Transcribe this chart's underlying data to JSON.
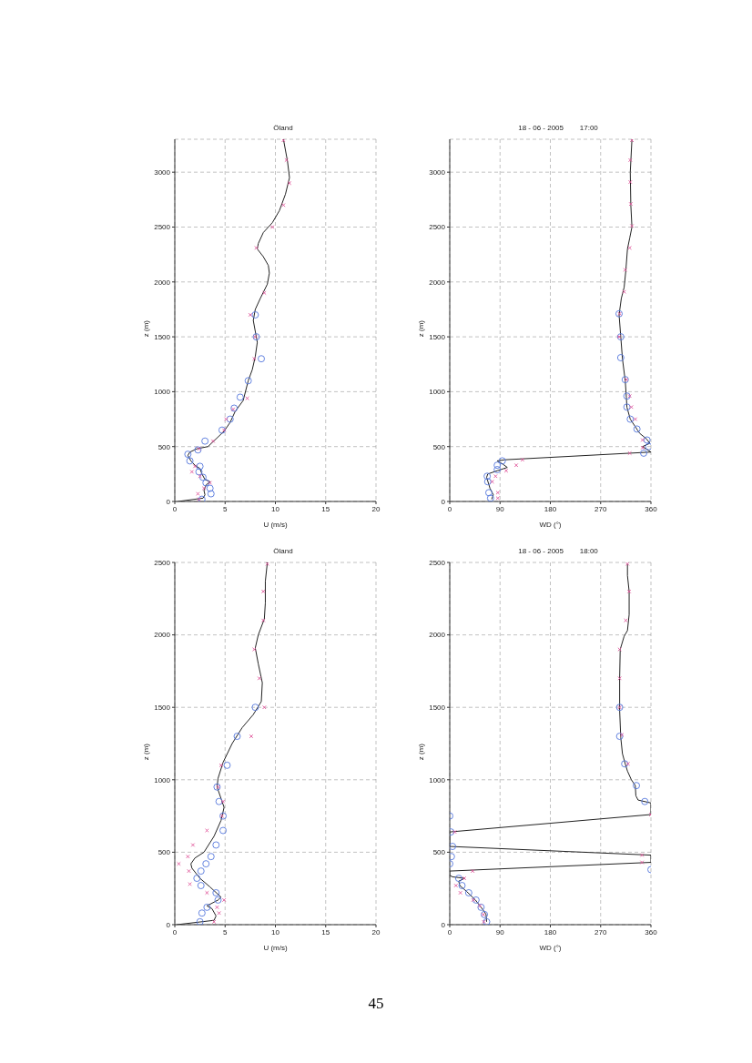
{
  "chart_data": [
    {
      "type": "line",
      "title": "Öland",
      "xlabel": "U  (m/s)",
      "ylabel": "z  (m)",
      "xlim": [
        0,
        20
      ],
      "xticks": [
        0,
        5,
        10,
        15,
        20
      ],
      "ylim": [
        0,
        3300
      ],
      "yticks": [
        0,
        500,
        1000,
        1500,
        2000,
        2500,
        3000
      ],
      "grid": true,
      "series": [
        {
          "type": "line",
          "color": "#222222",
          "marker": "none",
          "x": [
            0.3,
            2.8,
            3.0,
            2.9,
            3.1,
            3.5,
            3.0,
            2.7,
            2.5,
            2.0,
            1.6,
            1.3,
            1.5,
            2.2,
            3.3,
            4.9,
            5.5,
            6.0,
            6.8,
            7.3,
            7.7,
            8.0,
            8.2,
            8.0,
            7.8,
            8.0,
            8.5,
            9.2,
            9.4,
            9.3,
            8.8,
            8.2,
            8.3,
            8.8,
            9.7,
            10.4,
            11.0,
            11.4,
            11.2,
            10.8
          ],
          "values": [
            0,
            30,
            60,
            100,
            150,
            180,
            200,
            250,
            300,
            330,
            370,
            420,
            450,
            480,
            500,
            640,
            720,
            820,
            920,
            1100,
            1200,
            1320,
            1450,
            1550,
            1650,
            1750,
            1850,
            1980,
            2080,
            2150,
            2230,
            2300,
            2350,
            2450,
            2540,
            2650,
            2800,
            2950,
            3100,
            3300
          ]
        },
        {
          "type": "scatter",
          "color": "#5577dd",
          "marker": "circle",
          "x": [
            8.0,
            8.1,
            8.6,
            7.3,
            6.5,
            5.9,
            5.5,
            4.7,
            3.0,
            2.3,
            1.3,
            1.5,
            2.5,
            2.4,
            2.8,
            3.1,
            3.5,
            3.6,
            2.7
          ],
          "values": [
            1700,
            1500,
            1300,
            1100,
            950,
            850,
            750,
            650,
            550,
            470,
            430,
            370,
            320,
            270,
            220,
            170,
            120,
            70,
            20
          ]
        },
        {
          "type": "scatter",
          "color": "#e0559a",
          "marker": "cross",
          "x": [
            10.8,
            11.1,
            11.4,
            10.8,
            9.7,
            8.1,
            8.9,
            7.5,
            8.0,
            7.9,
            7.2,
            5.8,
            5.1,
            4.9,
            3.8,
            2.4,
            2.0,
            1.7,
            2.5,
            3.5,
            2.9,
            2.3,
            2.4
          ],
          "values": [
            3290,
            3110,
            2900,
            2700,
            2500,
            2310,
            1900,
            1700,
            1500,
            1300,
            940,
            840,
            750,
            650,
            550,
            480,
            320,
            270,
            230,
            170,
            120,
            70,
            20
          ]
        }
      ]
    },
    {
      "type": "line",
      "title": "18 - 06 - 2005        17:00",
      "xlabel": "WD (°)",
      "ylabel": "z  (m)",
      "xlim": [
        0,
        360
      ],
      "xticks": [
        0,
        90,
        180,
        270,
        360
      ],
      "ylim": [
        0,
        3300
      ],
      "yticks": [
        0,
        500,
        1000,
        1500,
        2000,
        2500,
        3000
      ],
      "grid": true,
      "series": [
        {
          "type": "line",
          "color": "#222222",
          "marker": "none",
          "x": [
            75,
            78,
            72,
            66,
            68,
            85,
            103,
            95,
            85,
            99,
            360,
            345,
            358,
            352,
            340,
            336,
            323,
            317,
            316,
            314,
            309,
            306,
            303,
            307,
            312,
            315,
            318,
            322,
            326,
            324,
            323,
            326
          ],
          "values": [
            20,
            60,
            120,
            220,
            250,
            280,
            310,
            340,
            370,
            380,
            450,
            500,
            530,
            570,
            620,
            650,
            750,
            860,
            950,
            1100,
            1300,
            1500,
            1700,
            1850,
            1950,
            2100,
            2300,
            2400,
            2500,
            2700,
            3000,
            3300
          ]
        },
        {
          "type": "scatter",
          "color": "#5577dd",
          "marker": "circle",
          "x": [
            73,
            70,
            68,
            67,
            85,
            85,
            94,
            347,
            356,
            353,
            335,
            323,
            317,
            317,
            314,
            306,
            306,
            303
          ],
          "values": [
            30,
            80,
            180,
            230,
            290,
            330,
            370,
            440,
            500,
            560,
            660,
            750,
            860,
            960,
            1110,
            1310,
            1500,
            1710
          ]
        },
        {
          "type": "scatter",
          "color": "#e0559a",
          "marker": "cross",
          "x": [
            86,
            86,
            76,
            82,
            101,
            119,
            130,
            322,
            345,
            345,
            332,
            325,
            322,
            316,
            303,
            304,
            312,
            314,
            322,
            326,
            324,
            323,
            323,
            326
          ],
          "values": [
            30,
            80,
            180,
            230,
            280,
            330,
            380,
            440,
            490,
            560,
            750,
            860,
            960,
            1110,
            1500,
            1710,
            1910,
            2110,
            2310,
            2510,
            2710,
            2910,
            3110,
            3290
          ]
        }
      ]
    },
    {
      "type": "line",
      "title": "Öland",
      "xlabel": "U  (m/s)",
      "ylabel": "z  (m)",
      "xlim": [
        0,
        20
      ],
      "xticks": [
        0,
        5,
        10,
        15,
        20
      ],
      "ylim": [
        0,
        2500
      ],
      "yticks": [
        0,
        500,
        1000,
        1500,
        2000,
        2500
      ],
      "grid": true,
      "series": [
        {
          "type": "line",
          "color": "#222222",
          "marker": "none",
          "x": [
            0.2,
            3.9,
            4.1,
            3.7,
            3.2,
            4.3,
            4.6,
            3.5,
            2.5,
            1.7,
            1.6,
            2.0,
            2.9,
            3.9,
            4.6,
            4.9,
            4.6,
            4.2,
            4.3,
            4.8,
            5.7,
            6.7,
            7.8,
            8.6,
            8.7,
            8.3,
            8.0,
            8.3,
            8.9,
            9.0,
            9.0,
            9.2
          ],
          "values": [
            0,
            30,
            60,
            110,
            130,
            170,
            190,
            260,
            320,
            390,
            420,
            460,
            500,
            610,
            720,
            810,
            870,
            950,
            1010,
            1120,
            1250,
            1360,
            1450,
            1540,
            1670,
            1800,
            1910,
            2000,
            2110,
            2220,
            2370,
            2500
          ]
        },
        {
          "type": "scatter",
          "color": "#5577dd",
          "marker": "circle",
          "x": [
            2.5,
            2.7,
            3.2,
            4.3,
            4.1,
            2.6,
            2.2,
            2.6,
            3.1,
            3.6,
            4.1,
            4.8,
            4.8,
            4.4,
            4.2,
            5.2,
            6.2,
            8.0
          ],
          "values": [
            20,
            80,
            120,
            170,
            220,
            270,
            320,
            370,
            420,
            470,
            550,
            650,
            750,
            850,
            950,
            1100,
            1300,
            1500
          ]
        },
        {
          "type": "scatter",
          "color": "#e0559a",
          "marker": "cross",
          "x": [
            3.9,
            4.4,
            4.2,
            4.9,
            3.2,
            1.5,
            1.4,
            0.4,
            1.3,
            1.8,
            3.2,
            4.7,
            4.8,
            4.3,
            4.6,
            7.6,
            8.9,
            8.4,
            7.9,
            8.8,
            8.8,
            9.2
          ],
          "values": [
            20,
            80,
            120,
            170,
            220,
            280,
            370,
            420,
            470,
            550,
            650,
            750,
            850,
            950,
            1100,
            1300,
            1500,
            1700,
            1900,
            2100,
            2300,
            2490
          ]
        }
      ]
    },
    {
      "type": "line",
      "title": "18 - 06 - 2005        18:00",
      "xlabel": "WD (°)",
      "ylabel": "z  (m)",
      "xlim": [
        0,
        360
      ],
      "xticks": [
        0,
        90,
        180,
        270,
        360
      ],
      "ylim": [
        0,
        2500
      ],
      "yticks": [
        0,
        500,
        1000,
        1500,
        2000,
        2500
      ],
      "grid": true,
      "annotations": [
        "45"
      ],
      "series": [
        {
          "type": "line",
          "color": "#222222",
          "marker": "none",
          "x": [
            66,
            65,
            60,
            46,
            30,
            18,
            16,
            27,
            5,
            0,
            0,
            360,
            360,
            0,
            0,
            360,
            360,
            337,
            333,
            332,
            325,
            318,
            314,
            309,
            306,
            304,
            304,
            305,
            312,
            318,
            321,
            321,
            318,
            318
          ],
          "values": [
            20,
            70,
            100,
            170,
            230,
            270,
            300,
            320,
            330,
            340,
            370,
            430,
            480,
            540,
            640,
            760,
            840,
            860,
            890,
            960,
            1000,
            1060,
            1110,
            1180,
            1290,
            1480,
            1700,
            1900,
            1990,
            2030,
            2140,
            2300,
            2410,
            2490
          ]
        },
        {
          "type": "scatter",
          "color": "#5577dd",
          "marker": "circle",
          "x": [
            66,
            62,
            56,
            47,
            34,
            22,
            16,
            360,
            0,
            3,
            5,
            2,
            0,
            349,
            334,
            313,
            304,
            304
          ],
          "values": [
            20,
            70,
            120,
            170,
            220,
            270,
            320,
            380,
            420,
            470,
            540,
            640,
            750,
            850,
            960,
            1110,
            1300,
            1500
          ]
        },
        {
          "type": "scatter",
          "color": "#e0559a",
          "marker": "cross",
          "x": [
            61,
            60,
            54,
            42,
            19,
            11,
            26,
            41,
            344,
            344,
            9,
            360,
            319,
            308,
            304,
            304,
            304,
            315,
            321,
            318
          ],
          "values": [
            20,
            70,
            130,
            170,
            220,
            270,
            320,
            370,
            430,
            480,
            640,
            760,
            1110,
            1310,
            1500,
            1700,
            1900,
            2100,
            2300,
            2490
          ]
        }
      ]
    }
  ]
}
